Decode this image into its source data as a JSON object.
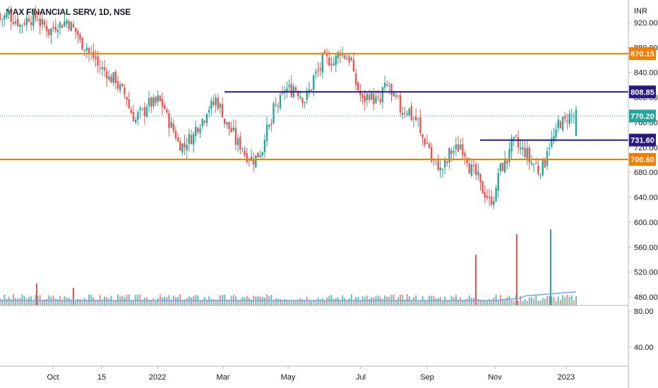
{
  "chart_data": [
    {
      "type": "candlestick",
      "title": "MAX FINANCIAL SERV, 1D, NSE",
      "currency": "INR",
      "y_ticks": [
        "920.00",
        "880.00",
        "840.00",
        "800.00",
        "760.00",
        "720.00",
        "680.00",
        "640.00",
        "600.00",
        "560.00",
        "520.00",
        "480.00"
      ],
      "ylim": [
        460,
        935
      ],
      "x_ticks": [
        "Oct",
        "15",
        "2022",
        "Mar",
        "May",
        "Jul",
        "Sep",
        "Nov",
        "2023"
      ],
      "horizontal_levels": [
        {
          "price": 870.15,
          "label": "870.15",
          "color": "#f57c00"
        },
        {
          "price": 808.85,
          "label": "808.85",
          "color": "#2a1a80"
        },
        {
          "price": 731.6,
          "label": "731.60",
          "color": "#2a1a80"
        },
        {
          "price": 700.6,
          "label": "700.60",
          "color": "#f57c00"
        }
      ],
      "last_price": {
        "price": 770.2,
        "label": "770.20",
        "color": "#26a69a"
      },
      "up_color": "#26a69a",
      "down_color": "#ef5350",
      "price_path": [
        [
          935,
          925
        ],
        [
          935,
          930
        ],
        [
          920,
          915
        ],
        [
          930,
          925
        ],
        [
          930,
          920
        ],
        [
          910,
          905
        ],
        [
          920,
          915
        ],
        [
          925,
          920
        ],
        [
          900,
          890
        ],
        [
          880,
          870
        ],
        [
          860,
          850
        ],
        [
          840,
          830
        ],
        [
          830,
          820
        ],
        [
          800,
          790
        ],
        [
          760,
          770
        ],
        [
          780,
          790
        ],
        [
          790,
          800
        ],
        [
          780,
          770
        ],
        [
          740,
          730
        ],
        [
          720,
          730
        ],
        [
          740,
          750
        ],
        [
          770,
          780
        ],
        [
          790,
          800
        ],
        [
          770,
          760
        ],
        [
          740,
          730
        ],
        [
          720,
          710
        ],
        [
          700,
          700
        ],
        [
          720,
          740
        ],
        [
          760,
          780
        ],
        [
          800,
          815
        ],
        [
          810,
          820
        ],
        [
          800,
          790
        ],
        [
          820,
          830
        ],
        [
          850,
          860
        ],
        [
          860,
          850
        ],
        [
          880,
          870
        ],
        [
          860,
          840
        ],
        [
          800,
          790
        ],
        [
          810,
          800
        ],
        [
          790,
          810
        ],
        [
          820,
          800
        ],
        [
          790,
          780
        ],
        [
          780,
          770
        ],
        [
          760,
          740
        ],
        [
          720,
          700
        ],
        [
          690,
          680
        ],
        [
          700,
          710
        ],
        [
          720,
          730
        ],
        [
          700,
          690
        ],
        [
          670,
          660
        ],
        [
          640,
          630
        ],
        [
          650,
          680
        ],
        [
          700,
          720
        ],
        [
          730,
          720
        ],
        [
          710,
          700
        ],
        [
          690,
          680
        ],
        [
          700,
          720
        ],
        [
          740,
          760
        ],
        [
          760,
          770
        ],
        [
          770,
          770
        ]
      ]
    },
    {
      "type": "bar",
      "name": "Volume",
      "y_ticks": [
        "80.00",
        "40.00"
      ],
      "spike_values": [
        26,
        17,
        25,
        26,
        35
      ]
    }
  ]
}
